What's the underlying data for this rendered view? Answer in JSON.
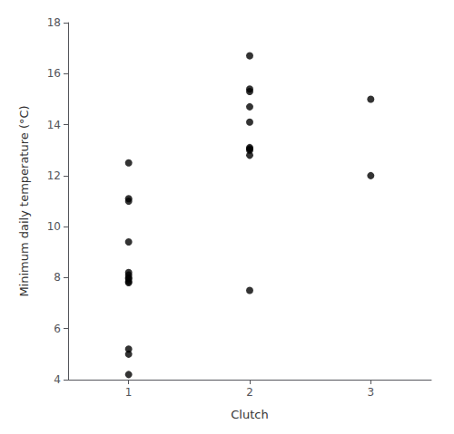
{
  "chart_data": {
    "type": "scatter",
    "x": [
      1,
      1,
      1,
      1,
      1,
      1,
      1,
      1,
      1,
      1,
      1,
      1,
      1,
      2,
      2,
      2,
      2,
      2,
      2,
      2,
      2,
      2,
      2,
      3,
      3
    ],
    "y": [
      4.2,
      5.0,
      5.2,
      7.8,
      7.85,
      7.95,
      8.1,
      8.2,
      9.4,
      11.0,
      11.1,
      12.5,
      8.0,
      7.5,
      12.8,
      13.0,
      13.05,
      13.1,
      14.1,
      14.7,
      15.3,
      15.4,
      16.7,
      12.0,
      15.0
    ],
    "xlabel": "Clutch",
    "ylabel": "Minimum daily temperature (°C)",
    "xlim": [
      0.5,
      3.5
    ],
    "ylim": [
      4,
      18
    ],
    "xticks": [
      1,
      2,
      3
    ],
    "yticks": [
      4,
      6,
      8,
      10,
      12,
      14,
      16,
      18
    ],
    "color": "#000000",
    "grid": false
  }
}
